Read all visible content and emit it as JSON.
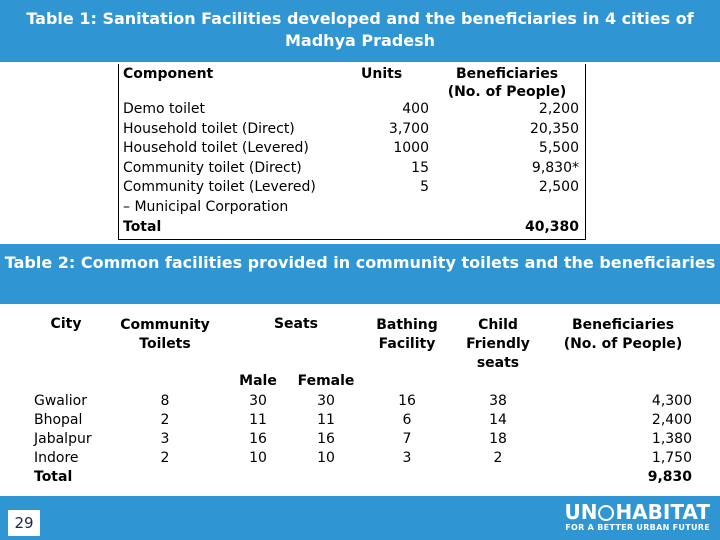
{
  "table1": {
    "title": "Table 1: Sanitation Facilities developed and the beneficiaries in 4 cities of Madhya Pradesh",
    "headers": {
      "component": "Component",
      "units": "Units",
      "beneficiaries_1": "Beneficiaries",
      "beneficiaries_2": "(No. of People)"
    },
    "rows": [
      {
        "component": "Demo toilet",
        "units": "400",
        "beneficiaries": "2,200"
      },
      {
        "component": "Household toilet (Direct)",
        "units": "3,700",
        "beneficiaries": "20,350"
      },
      {
        "component": "Household toilet (Levered)",
        "units": "1000",
        "beneficiaries": "5,500"
      },
      {
        "component": "Community toilet (Direct)",
        "units": "15",
        "beneficiaries": "9,830*"
      },
      {
        "component": "Community toilet (Levered)",
        "units": "5",
        "beneficiaries": "2,500"
      },
      {
        "component": "– Municipal Corporation",
        "units": "",
        "beneficiaries": ""
      }
    ],
    "total": {
      "label": "Total",
      "beneficiaries": "40,380"
    }
  },
  "table2": {
    "title": "Table 2: Common facilities provided in community toilets and the beneficiaries",
    "headers": {
      "city": "City",
      "community_toilets_1": "Community",
      "community_toilets_2": "Toilets",
      "seats": "Seats",
      "male": "Male",
      "female": "Female",
      "bathing_1": "Bathing",
      "bathing_2": "Facility",
      "child_1": "Child",
      "child_2": "Friendly",
      "child_3": "seats",
      "beneficiaries_1": "Beneficiaries",
      "beneficiaries_2": "(No. of People)"
    },
    "rows": [
      {
        "city": "Gwalior",
        "toilets": "8",
        "male": "30",
        "female": "30",
        "bathing": "16",
        "child": "38",
        "beneficiaries": "4,300"
      },
      {
        "city": "Bhopal",
        "toilets": "2",
        "male": "11",
        "female": "11",
        "bathing": "6",
        "child": "14",
        "beneficiaries": "2,400"
      },
      {
        "city": "Jabalpur",
        "toilets": "3",
        "male": "16",
        "female": "16",
        "bathing": "7",
        "child": "18",
        "beneficiaries": "1,380"
      },
      {
        "city": "Indore",
        "toilets": "2",
        "male": "10",
        "female": "10",
        "bathing": "3",
        "child": "2",
        "beneficiaries": "1,750"
      }
    ],
    "total": {
      "label": "Total",
      "beneficiaries": "9,830"
    }
  },
  "footer": {
    "page_number": "29",
    "logo_un": "UN",
    "logo_habitat": "HABITAT",
    "logo_tagline": "FOR A BETTER URBAN FUTURE"
  },
  "colors": {
    "banner": "#2f96d3",
    "text": "#000000"
  }
}
